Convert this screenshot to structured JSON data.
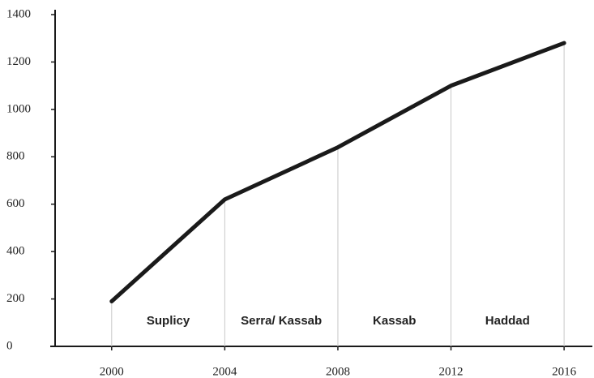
{
  "chart_data": {
    "type": "line",
    "x": [
      2000,
      2004,
      2008,
      2012,
      2016
    ],
    "series": [
      {
        "values": [
          190,
          620,
          840,
          1100,
          1280
        ],
        "color": "#1a1a1a"
      }
    ],
    "period_labels": [
      "Suplicy",
      "Serra/ Kassab",
      "Kassab",
      "Haddad"
    ],
    "xlim": [
      1998,
      2017
    ],
    "xticks": [
      2000,
      2004,
      2008,
      2012,
      2016
    ],
    "ylim": [
      0,
      1400
    ],
    "yticks": [
      0,
      200,
      400,
      600,
      800,
      1000,
      1200,
      1400
    ],
    "drop_lines": true
  }
}
